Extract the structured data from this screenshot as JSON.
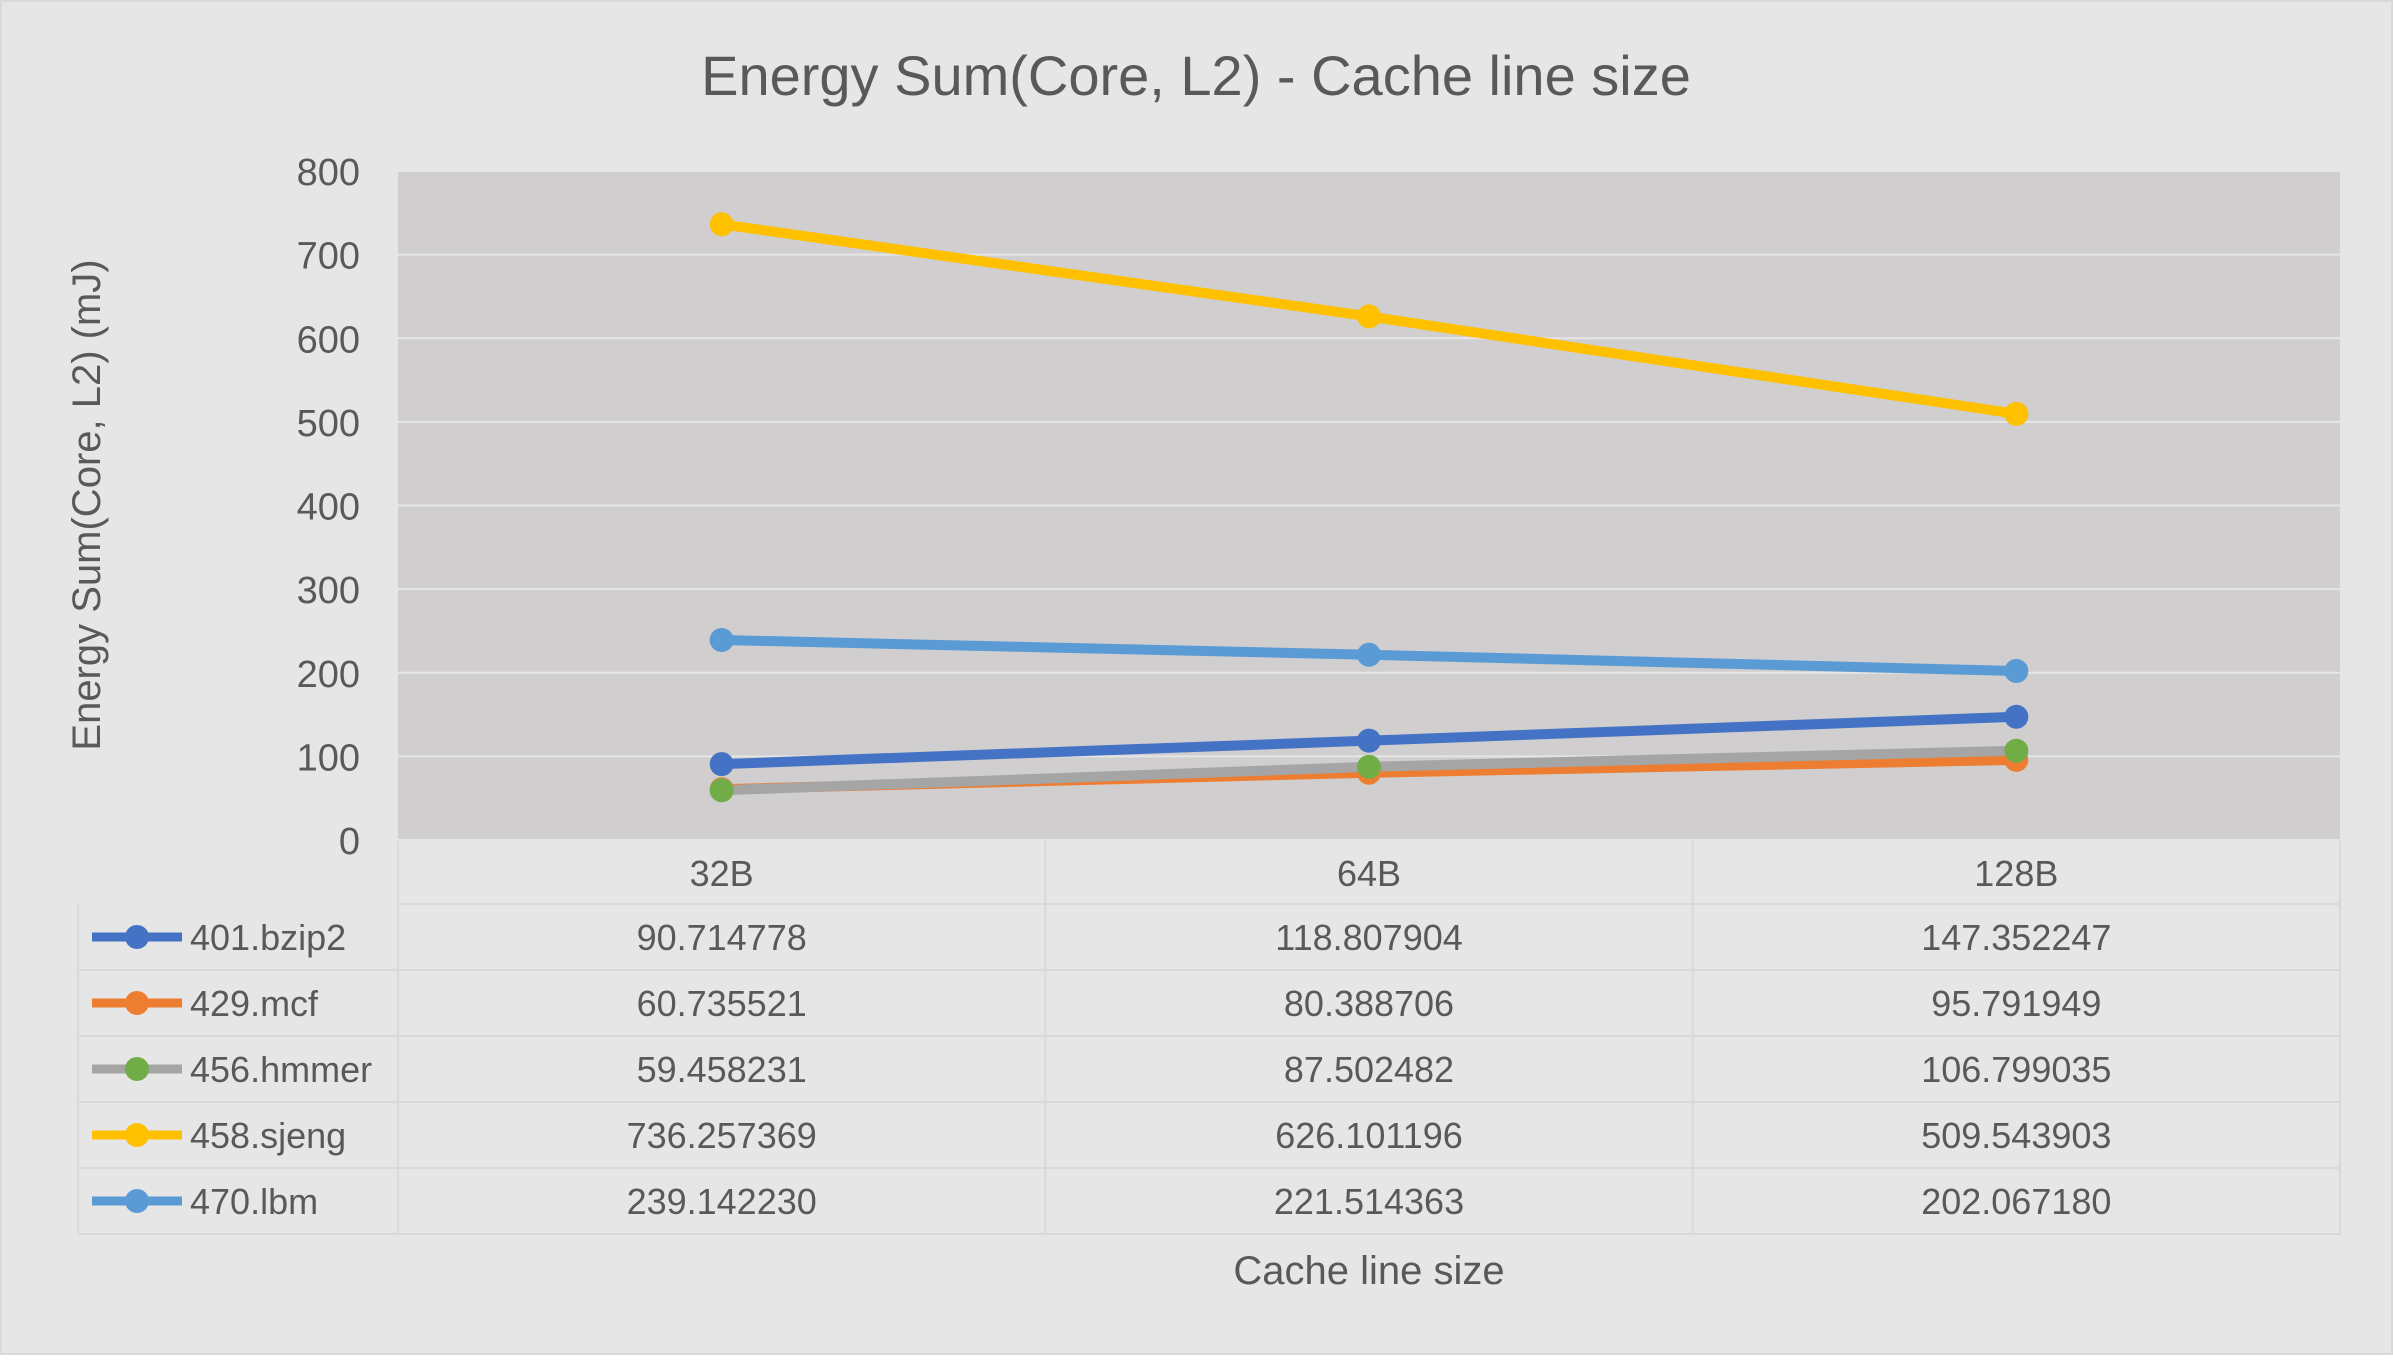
{
  "chart_data": {
    "type": "line",
    "title": "Energy Sum(Core, L2) - Cache line size",
    "xlabel": "Cache line size",
    "ylabel": "Energy Sum(Core, L2) (mJ)",
    "categories": [
      "32B",
      "64B",
      "128B"
    ],
    "ylim": [
      0,
      800
    ],
    "yticks": [
      0,
      100,
      200,
      300,
      400,
      500,
      600,
      700,
      800
    ],
    "grid": true,
    "legend": "data-table",
    "series": [
      {
        "name": "401.bzip2",
        "color": "#4472C4",
        "marker_color": "#4472C4",
        "values": [
          90.714778,
          118.807904,
          147.352247
        ],
        "labels": [
          "90.714778",
          "118.807904",
          "147.352247"
        ]
      },
      {
        "name": "429.mcf",
        "color": "#ED7D31",
        "marker_color": "#ED7D31",
        "values": [
          60.735521,
          80.388706,
          95.791949
        ],
        "labels": [
          "60.735521",
          "80.388706",
          "95.791949"
        ]
      },
      {
        "name": "456.hmmer",
        "color": "#A5A5A5",
        "marker_color": "#70AD47",
        "values": [
          59.458231,
          87.502482,
          106.799035
        ],
        "labels": [
          "59.458231",
          "87.502482",
          "106.799035"
        ]
      },
      {
        "name": "458.sjeng",
        "color": "#FFC000",
        "marker_color": "#FFC000",
        "values": [
          736.257369,
          626.101196,
          509.543903
        ],
        "labels": [
          "736.257369",
          "626.101196",
          "509.543903"
        ]
      },
      {
        "name": "470.lbm",
        "color": "#5B9BD5",
        "marker_color": "#5B9BD5",
        "values": [
          239.14223,
          221.514363,
          202.06718
        ],
        "labels": [
          "239.142230",
          "221.514363",
          "202.067180"
        ]
      }
    ],
    "colors": {
      "background": "#E7E6E6",
      "plot_area": "#D0CECE",
      "gridline": "#E7E6E6",
      "table_border": "#D9D9D9",
      "text": "#595959"
    }
  }
}
